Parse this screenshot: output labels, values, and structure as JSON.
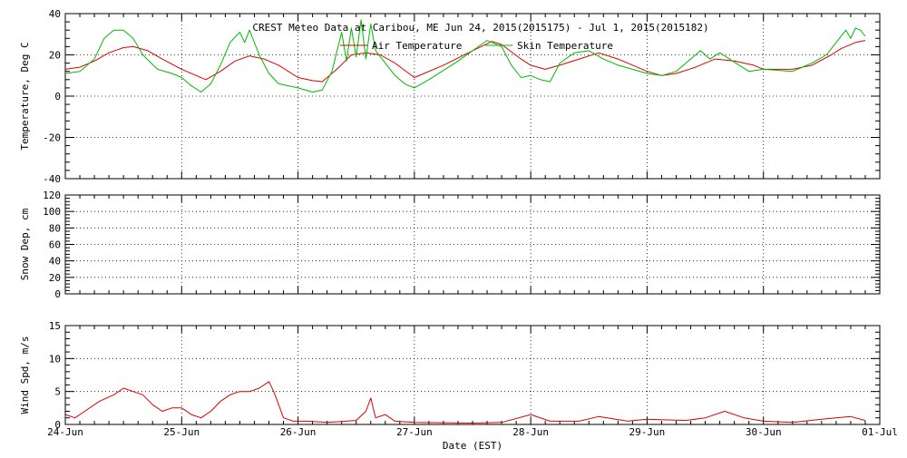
{
  "chart_data": {
    "title": "CREST Meteo Data at Caribou, ME   Jun 24, 2015(2015175) - Jul  1, 2015(2015182)",
    "x_axis": {
      "label": "Date (EST)",
      "range": [
        "2015-06-24T00:00",
        "2015-07-01T00:00"
      ],
      "ticks": [
        "24-Jun",
        "25-Jun",
        "26-Jun",
        "27-Jun",
        "28-Jun",
        "29-Jun",
        "30-Jun",
        "01-Jul"
      ]
    },
    "panels": [
      {
        "type": "line",
        "ylabel": "Temperature, Deg C",
        "ylim": [
          -40,
          40
        ],
        "yticks": [
          "40",
          "20",
          "0",
          "-20",
          "-40"
        ],
        "grid": true,
        "legend_position": "top-center",
        "series": [
          {
            "name": "Air Temperature",
            "color": "#dd0000",
            "points": [
              [
                "2015-06-24T00:00",
                13
              ],
              [
                "2015-06-24T03:00",
                14
              ],
              [
                "2015-06-24T06:00",
                17
              ],
              [
                "2015-06-24T09:00",
                21
              ],
              [
                "2015-06-24T12:00",
                23.5
              ],
              [
                "2015-06-24T14:00",
                24
              ],
              [
                "2015-06-24T17:00",
                22
              ],
              [
                "2015-06-24T20:00",
                18
              ],
              [
                "2015-06-25T00:00",
                13
              ],
              [
                "2015-06-25T03:00",
                10
              ],
              [
                "2015-06-25T05:00",
                8
              ],
              [
                "2015-06-25T08:00",
                12
              ],
              [
                "2015-06-25T11:00",
                17
              ],
              [
                "2015-06-25T14:00",
                19.5
              ],
              [
                "2015-06-25T17:00",
                18
              ],
              [
                "2015-06-25T20:00",
                15
              ],
              [
                "2015-06-26T00:00",
                9
              ],
              [
                "2015-06-26T03:00",
                7.5
              ],
              [
                "2015-06-26T05:00",
                7
              ],
              [
                "2015-06-26T08:00",
                13
              ],
              [
                "2015-06-26T11:00",
                20
              ],
              [
                "2015-06-26T14:00",
                21
              ],
              [
                "2015-06-26T17:00",
                20
              ],
              [
                "2015-06-26T20:00",
                16
              ],
              [
                "2015-06-27T00:00",
                9
              ],
              [
                "2015-06-27T06:00",
                15
              ],
              [
                "2015-06-27T12:00",
                22
              ],
              [
                "2015-06-27T16:00",
                26.5
              ],
              [
                "2015-06-27T18:00",
                25
              ],
              [
                "2015-06-27T22:00",
                18
              ],
              [
                "2015-06-28T00:00",
                15
              ],
              [
                "2015-06-28T03:00",
                13
              ],
              [
                "2015-06-28T06:00",
                15
              ],
              [
                "2015-06-28T10:00",
                18
              ],
              [
                "2015-06-28T14:00",
                21
              ],
              [
                "2015-06-28T18:00",
                18
              ],
              [
                "2015-06-29T00:00",
                12
              ],
              [
                "2015-06-29T03:00",
                10
              ],
              [
                "2015-06-29T06:00",
                11
              ],
              [
                "2015-06-29T10:00",
                14
              ],
              [
                "2015-06-29T14:00",
                18
              ],
              [
                "2015-06-29T18:00",
                17
              ],
              [
                "2015-06-29T22:00",
                15
              ],
              [
                "2015-06-30T00:00",
                13
              ],
              [
                "2015-06-30T06:00",
                13
              ],
              [
                "2015-06-30T10:00",
                15
              ],
              [
                "2015-06-30T14:00",
                20
              ],
              [
                "2015-06-30T16:00",
                23
              ],
              [
                "2015-06-30T19:00",
                26
              ],
              [
                "2015-06-30T21:00",
                27
              ]
            ]
          },
          {
            "name": "Skin Temperature",
            "color": "#00bb00",
            "points": [
              [
                "2015-06-24T00:00",
                11
              ],
              [
                "2015-06-24T03:00",
                12
              ],
              [
                "2015-06-24T06:00",
                18
              ],
              [
                "2015-06-24T08:00",
                28
              ],
              [
                "2015-06-24T10:00",
                32
              ],
              [
                "2015-06-24T12:00",
                32
              ],
              [
                "2015-06-24T14:00",
                28
              ],
              [
                "2015-06-24T16:00",
                20
              ],
              [
                "2015-06-24T19:00",
                13
              ],
              [
                "2015-06-24T22:00",
                11
              ],
              [
                "2015-06-25T00:00",
                9
              ],
              [
                "2015-06-25T02:00",
                5
              ],
              [
                "2015-06-25T04:00",
                2
              ],
              [
                "2015-06-25T06:00",
                6
              ],
              [
                "2015-06-25T08:00",
                15
              ],
              [
                "2015-06-25T10:00",
                26
              ],
              [
                "2015-06-25T12:00",
                31
              ],
              [
                "2015-06-25T13:00",
                26
              ],
              [
                "2015-06-25T14:00",
                32
              ],
              [
                "2015-06-25T16:00",
                20
              ],
              [
                "2015-06-25T18:00",
                11
              ],
              [
                "2015-06-25T20:00",
                6
              ],
              [
                "2015-06-25T22:00",
                5
              ],
              [
                "2015-06-26T00:00",
                4
              ],
              [
                "2015-06-26T03:00",
                2
              ],
              [
                "2015-06-26T05:00",
                3
              ],
              [
                "2015-06-26T07:00",
                12
              ],
              [
                "2015-06-26T09:00",
                31
              ],
              [
                "2015-06-26T10:00",
                17
              ],
              [
                "2015-06-26T11:00",
                33
              ],
              [
                "2015-06-26T12:00",
                19
              ],
              [
                "2015-06-26T13:00",
                37
              ],
              [
                "2015-06-26T14:00",
                18
              ],
              [
                "2015-06-26T15:00",
                35
              ],
              [
                "2015-06-26T16:00",
                22
              ],
              [
                "2015-06-26T18:00",
                16
              ],
              [
                "2015-06-26T20:00",
                10
              ],
              [
                "2015-06-26T22:00",
                6
              ],
              [
                "2015-06-27T00:00",
                4
              ],
              [
                "2015-06-27T03:00",
                8
              ],
              [
                "2015-06-27T09:00",
                17
              ],
              [
                "2015-06-27T15:00",
                27
              ],
              [
                "2015-06-27T18:00",
                24
              ],
              [
                "2015-06-27T20:00",
                15
              ],
              [
                "2015-06-27T22:00",
                9
              ],
              [
                "2015-06-28T00:00",
                10
              ],
              [
                "2015-06-28T02:00",
                8
              ],
              [
                "2015-06-28T04:00",
                7
              ],
              [
                "2015-06-28T06:00",
                16
              ],
              [
                "2015-06-28T09:00",
                21
              ],
              [
                "2015-06-28T12:00",
                22
              ],
              [
                "2015-06-28T15:00",
                18
              ],
              [
                "2015-06-28T18:00",
                15
              ],
              [
                "2015-06-28T21:00",
                13
              ],
              [
                "2015-06-29T00:00",
                11
              ],
              [
                "2015-06-29T03:00",
                10
              ],
              [
                "2015-06-29T06:00",
                12
              ],
              [
                "2015-06-29T09:00",
                18
              ],
              [
                "2015-06-29T11:00",
                22
              ],
              [
                "2015-06-29T13:00",
                18
              ],
              [
                "2015-06-29T15:00",
                21
              ],
              [
                "2015-06-29T17:00",
                18
              ],
              [
                "2015-06-29T19:00",
                15
              ],
              [
                "2015-06-29T21:00",
                12
              ],
              [
                "2015-06-30T00:00",
                13
              ],
              [
                "2015-06-30T06:00",
                12
              ],
              [
                "2015-06-30T10:00",
                16
              ],
              [
                "2015-06-30T13:00",
                20
              ],
              [
                "2015-06-30T15:00",
                26
              ],
              [
                "2015-06-30T17:00",
                32
              ],
              [
                "2015-06-30T18:00",
                28
              ],
              [
                "2015-06-30T19:00",
                33
              ],
              [
                "2015-06-30T20:00",
                32
              ],
              [
                "2015-06-30T21:00",
                29
              ]
            ]
          }
        ]
      },
      {
        "type": "line",
        "ylabel": "Snow Dep, cm",
        "ylim": [
          0,
          120
        ],
        "yticks": [
          "120",
          "100",
          "80",
          "60",
          "40",
          "20",
          "0"
        ],
        "grid": true,
        "series": []
      },
      {
        "type": "line",
        "ylabel": "Wind Spd, m/s",
        "ylim": [
          0,
          15
        ],
        "yticks": [
          "15",
          "10",
          "5",
          "0"
        ],
        "grid": true,
        "series": [
          {
            "name": "",
            "color": "#dd0000",
            "points": [
              [
                "2015-06-24T00:00",
                1.5
              ],
              [
                "2015-06-24T02:00",
                1
              ],
              [
                "2015-06-24T04:00",
                2
              ],
              [
                "2015-06-24T07:00",
                3.5
              ],
              [
                "2015-06-24T10:00",
                4.5
              ],
              [
                "2015-06-24T12:00",
                5.5
              ],
              [
                "2015-06-24T14:00",
                5
              ],
              [
                "2015-06-24T16:00",
                4.5
              ],
              [
                "2015-06-24T18:00",
                3
              ],
              [
                "2015-06-24T20:00",
                2
              ],
              [
                "2015-06-24T22:00",
                2.5
              ],
              [
                "2015-06-25T00:00",
                2.5
              ],
              [
                "2015-06-25T02:00",
                1.5
              ],
              [
                "2015-06-25T04:00",
                1
              ],
              [
                "2015-06-25T06:00",
                2
              ],
              [
                "2015-06-25T08:00",
                3.5
              ],
              [
                "2015-06-25T10:00",
                4.5
              ],
              [
                "2015-06-25T12:00",
                5
              ],
              [
                "2015-06-25T14:00",
                5
              ],
              [
                "2015-06-25T16:00",
                5.5
              ],
              [
                "2015-06-25T18:00",
                6.5
              ],
              [
                "2015-06-25T19:00",
                5
              ],
              [
                "2015-06-25T20:00",
                3
              ],
              [
                "2015-06-25T21:00",
                1
              ],
              [
                "2015-06-25T23:00",
                0.5
              ],
              [
                "2015-06-26T02:00",
                0.5
              ],
              [
                "2015-06-26T06:00",
                0.3
              ],
              [
                "2015-06-26T12:00",
                0.6
              ],
              [
                "2015-06-26T14:00",
                2
              ],
              [
                "2015-06-26T15:00",
                4
              ],
              [
                "2015-06-26T16:00",
                1
              ],
              [
                "2015-06-26T18:00",
                1.5
              ],
              [
                "2015-06-26T20:00",
                0.5
              ],
              [
                "2015-06-27T00:00",
                0.3
              ],
              [
                "2015-06-27T12:00",
                0.2
              ],
              [
                "2015-06-27T18:00",
                0.3
              ],
              [
                "2015-06-28T00:00",
                1.5
              ],
              [
                "2015-06-28T04:00",
                0.5
              ],
              [
                "2015-06-28T10:00",
                0.5
              ],
              [
                "2015-06-28T14:00",
                1.2
              ],
              [
                "2015-06-28T20:00",
                0.5
              ],
              [
                "2015-06-29T00:00",
                0.8
              ],
              [
                "2015-06-29T08:00",
                0.6
              ],
              [
                "2015-06-29T12:00",
                1
              ],
              [
                "2015-06-29T16:00",
                2
              ],
              [
                "2015-06-29T20:00",
                1
              ],
              [
                "2015-06-30T00:00",
                0.5
              ],
              [
                "2015-06-30T06:00",
                0.3
              ],
              [
                "2015-06-30T12:00",
                0.8
              ],
              [
                "2015-06-30T18:00",
                1.2
              ],
              [
                "2015-06-30T21:00",
                0.6
              ]
            ]
          }
        ]
      }
    ]
  }
}
